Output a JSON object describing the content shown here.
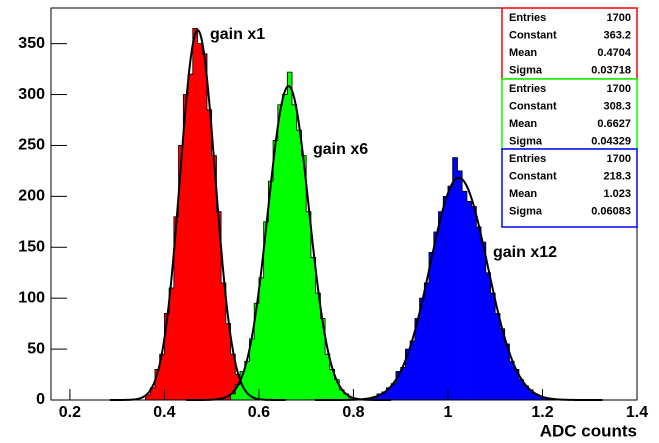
{
  "chart_data": {
    "type": "histogram",
    "x_label": "ADC counts",
    "xlim": [
      0.16,
      1.4
    ],
    "xticks": [
      0.2,
      0.4,
      0.6,
      0.8,
      1,
      1.2,
      1.4
    ],
    "ylim": [
      0,
      385
    ],
    "yticks": [
      0,
      50,
      100,
      150,
      200,
      250,
      300,
      350
    ],
    "series": [
      {
        "name": "gain x1",
        "color": "#ff0000",
        "bins": [
          0.36,
          0.37,
          0.38,
          0.39,
          0.4,
          0.41,
          0.42,
          0.43,
          0.44,
          0.45,
          0.46,
          0.47,
          0.48,
          0.49,
          0.5,
          0.51,
          0.52,
          0.53,
          0.54,
          0.55,
          0.56,
          0.57,
          0.58,
          0.59,
          0.6
        ],
        "values": [
          5,
          12,
          30,
          45,
          85,
          110,
          180,
          250,
          300,
          320,
          365,
          350,
          340,
          285,
          240,
          185,
          115,
          75,
          45,
          25,
          12,
          8,
          3,
          1
        ],
        "stats": [
          {
            "label": "Entries",
            "value": 1700
          },
          {
            "label": "Constant",
            "value": 363.2
          },
          {
            "label": "Mean",
            "value": 0.4704
          },
          {
            "label": "Sigma",
            "value": 0.03718
          }
        ]
      },
      {
        "name": "gain x6",
        "color": "#00ff00",
        "bins": [
          0.54,
          0.55,
          0.56,
          0.57,
          0.58,
          0.59,
          0.6,
          0.61,
          0.62,
          0.63,
          0.64,
          0.65,
          0.66,
          0.67,
          0.68,
          0.69,
          0.7,
          0.71,
          0.72,
          0.73,
          0.74,
          0.75,
          0.76,
          0.77,
          0.78,
          0.79,
          0.8
        ],
        "values": [
          6,
          15,
          28,
          38,
          60,
          95,
          120,
          175,
          215,
          255,
          290,
          300,
          322,
          290,
          265,
          240,
          185,
          140,
          105,
          80,
          45,
          30,
          20,
          10,
          6,
          2
        ],
        "stats": [
          {
            "label": "Entries",
            "value": 1700
          },
          {
            "label": "Constant",
            "value": 308.3
          },
          {
            "label": "Mean",
            "value": 0.6627
          },
          {
            "label": "Sigma",
            "value": 0.04329
          }
        ]
      },
      {
        "name": "gain x12",
        "color": "#0000ff",
        "bins": [
          0.84,
          0.85,
          0.86,
          0.87,
          0.88,
          0.89,
          0.9,
          0.91,
          0.92,
          0.93,
          0.94,
          0.95,
          0.96,
          0.97,
          0.98,
          0.99,
          1.0,
          1.01,
          1.02,
          1.03,
          1.04,
          1.05,
          1.06,
          1.07,
          1.08,
          1.09,
          1.1,
          1.11,
          1.12,
          1.13,
          1.14,
          1.15,
          1.16,
          1.17,
          1.18,
          1.19,
          1.2,
          1.21,
          1.22
        ],
        "values": [
          3,
          6,
          8,
          12,
          16,
          28,
          32,
          50,
          58,
          80,
          100,
          115,
          145,
          165,
          185,
          200,
          210,
          238,
          225,
          205,
          195,
          190,
          170,
          155,
          125,
          105,
          85,
          70,
          55,
          38,
          30,
          20,
          14,
          10,
          6,
          4,
          2,
          1
        ],
        "stats": [
          {
            "label": "Entries",
            "value": 1700
          },
          {
            "label": "Constant",
            "value": 218.3
          },
          {
            "label": "Mean",
            "value": 1.023
          },
          {
            "label": "Sigma",
            "value": 0.06083
          }
        ]
      }
    ]
  }
}
